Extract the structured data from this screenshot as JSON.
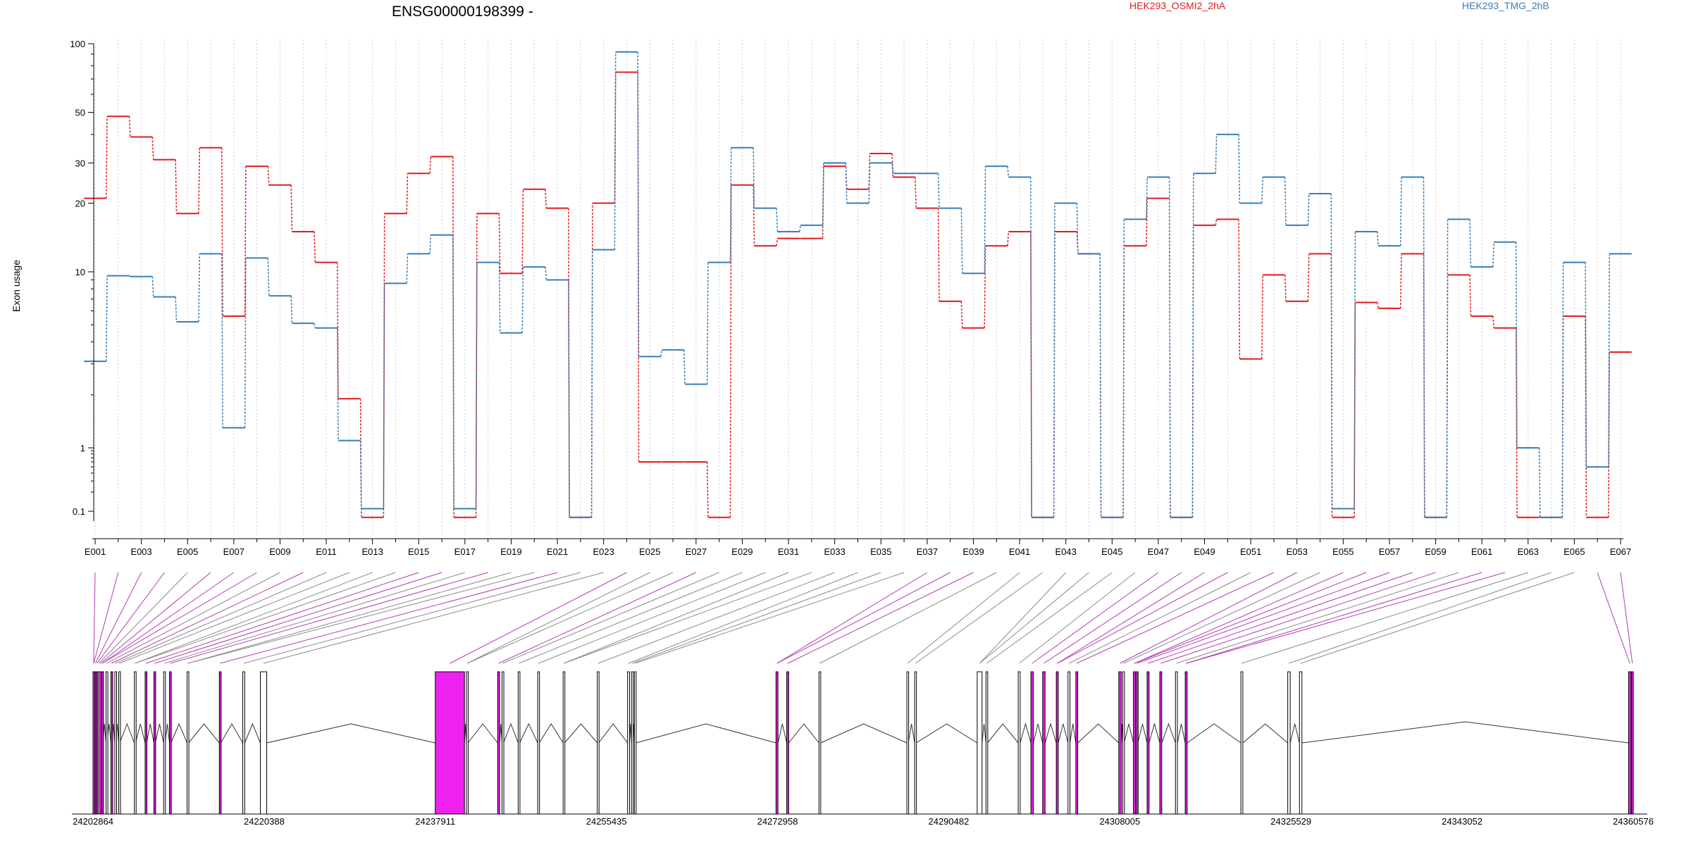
{
  "chart_data": {
    "type": "line",
    "title": "ENSG00000198399 -",
    "ylabel": "Exon usage",
    "yscale": "log",
    "ylim": [
      0.07,
      100
    ],
    "yticks": [
      0.1,
      1,
      10,
      20,
      30,
      50,
      100
    ],
    "ytick_labels": [
      "0.1",
      "1",
      "10",
      "20",
      "30",
      "50",
      "100"
    ],
    "categories": [
      "E001",
      "E002",
      "E003",
      "E004",
      "E005",
      "E006",
      "E007",
      "E008",
      "E009",
      "E010",
      "E011",
      "E012",
      "E013",
      "E014",
      "E015",
      "E016",
      "E017",
      "E018",
      "E019",
      "E020",
      "E021",
      "E022",
      "E023",
      "E024",
      "E025",
      "E026",
      "E027",
      "E028",
      "E029",
      "E030",
      "E031",
      "E032",
      "E033",
      "E034",
      "E035",
      "E036",
      "E037",
      "E038",
      "E039",
      "E040",
      "E041",
      "E042",
      "E043",
      "E044",
      "E045",
      "E046",
      "E047",
      "E048",
      "E049",
      "E050",
      "E051",
      "E052",
      "E053",
      "E054",
      "E055",
      "E056",
      "E057",
      "E058",
      "E059",
      "E060",
      "E061",
      "E062",
      "E063",
      "E064",
      "E065",
      "E066",
      "E067"
    ],
    "xtick_labels": [
      "E001",
      "E003",
      "E005",
      "E007",
      "E009",
      "E011",
      "E013",
      "E015",
      "E017",
      "E019",
      "E021",
      "E023",
      "E025",
      "E027",
      "E029",
      "E031",
      "E033",
      "E035",
      "E037",
      "E039",
      "E041",
      "E043",
      "E045",
      "E047",
      "E049",
      "E051",
      "E053",
      "E055",
      "E057",
      "E059",
      "E061",
      "E063",
      "E065",
      "E067"
    ],
    "series": [
      {
        "name": "HEK293_OSMI2_2hA",
        "color": "#e41a1c",
        "values": [
          21,
          48,
          39,
          31,
          18,
          35,
          5.6,
          29,
          24,
          15,
          11,
          1.9,
          0.08,
          18,
          27,
          32,
          0.08,
          18,
          9.8,
          23,
          19,
          0.08,
          20,
          75,
          0.6,
          0.6,
          0.6,
          0.08,
          24,
          13,
          14,
          14,
          29,
          23,
          33,
          26,
          19,
          6.8,
          4.8,
          13,
          15,
          0.08,
          15,
          12,
          0.08,
          13,
          21,
          0.08,
          16,
          17,
          3.2,
          9.6,
          6.8,
          12,
          0.08,
          6.7,
          6.2,
          12,
          0.08,
          9.6,
          5.6,
          4.8,
          0.08,
          0.08,
          5.6,
          0.08,
          3.5
        ]
      },
      {
        "name": "HEK293_TMG_2hB",
        "color": "#377eb8",
        "values": [
          3.1,
          9.5,
          9.4,
          7.2,
          5.2,
          12,
          1.3,
          11.5,
          7.3,
          5.1,
          4.8,
          1.1,
          0.11,
          8.6,
          12,
          14.5,
          0.11,
          11,
          4.5,
          10.5,
          9.0,
          0.08,
          12.5,
          92,
          3.3,
          3.6,
          2.3,
          11,
          35,
          19,
          15,
          16,
          30,
          20,
          30,
          27,
          27,
          19,
          9.8,
          29,
          26,
          0.08,
          20,
          12,
          0.08,
          17,
          26,
          0.08,
          27,
          40,
          20,
          26,
          16,
          22,
          0.11,
          15,
          13,
          26,
          0.08,
          17,
          10.5,
          13.5,
          1.0,
          0.08,
          11,
          0.5,
          12
        ]
      }
    ],
    "legend_placement": "top",
    "gene_model": {
      "coordinate_labels": [
        "24202864",
        "24220388",
        "24237911",
        "24255435",
        "24272958",
        "24290482",
        "24308005",
        "24325529",
        "24343052",
        "24360576"
      ],
      "highlight_color": "#ee22ee",
      "exons": [
        {
          "start": 24202864,
          "end": 24203000,
          "highlight": true
        },
        {
          "start": 24203060,
          "end": 24203160,
          "highlight": true
        },
        {
          "start": 24203200,
          "end": 24203340,
          "highlight": true
        },
        {
          "start": 24203400,
          "end": 24203520,
          "highlight": false
        },
        {
          "start": 24203560,
          "end": 24203700,
          "highlight": true
        },
        {
          "start": 24203760,
          "end": 24203880,
          "highlight": true
        },
        {
          "start": 24204200,
          "end": 24204300,
          "highlight": false
        },
        {
          "start": 24204700,
          "end": 24204820,
          "highlight": true
        },
        {
          "start": 24205100,
          "end": 24205200,
          "highlight": false
        },
        {
          "start": 24205500,
          "end": 24205600,
          "highlight": false
        },
        {
          "start": 24207100,
          "end": 24207220,
          "highlight": false
        },
        {
          "start": 24208200,
          "end": 24208350,
          "highlight": true
        },
        {
          "start": 24209100,
          "end": 24209250,
          "highlight": true
        },
        {
          "start": 24210100,
          "end": 24210250,
          "highlight": false
        },
        {
          "start": 24210700,
          "end": 24210850,
          "highlight": true
        },
        {
          "start": 24212500,
          "end": 24212650,
          "highlight": false
        },
        {
          "start": 24215800,
          "end": 24215950,
          "highlight": true
        },
        {
          "start": 24218200,
          "end": 24218400,
          "highlight": false
        },
        {
          "start": 24220000,
          "end": 24220650,
          "highlight": false
        },
        {
          "start": 24237911,
          "end": 24240900,
          "highlight": true
        },
        {
          "start": 24241100,
          "end": 24241250,
          "highlight": false
        },
        {
          "start": 24244300,
          "end": 24244500,
          "highlight": true
        },
        {
          "start": 24244750,
          "end": 24244900,
          "highlight": false
        },
        {
          "start": 24246400,
          "end": 24246550,
          "highlight": false
        },
        {
          "start": 24248400,
          "end": 24248550,
          "highlight": false
        },
        {
          "start": 24251000,
          "end": 24251150,
          "highlight": false
        },
        {
          "start": 24254500,
          "end": 24254650,
          "highlight": false
        },
        {
          "start": 24257600,
          "end": 24257800,
          "highlight": false
        },
        {
          "start": 24258000,
          "end": 24258150,
          "highlight": false
        },
        {
          "start": 24258300,
          "end": 24258450,
          "highlight": false
        },
        {
          "start": 24272800,
          "end": 24273000,
          "highlight": true
        },
        {
          "start": 24273900,
          "end": 24274100,
          "highlight": true
        },
        {
          "start": 24277200,
          "end": 24277350,
          "highlight": false
        },
        {
          "start": 24286200,
          "end": 24286350,
          "highlight": false
        },
        {
          "start": 24287000,
          "end": 24287150,
          "highlight": false
        },
        {
          "start": 24293400,
          "end": 24293900,
          "highlight": false
        },
        {
          "start": 24294300,
          "end": 24294450,
          "highlight": false
        },
        {
          "start": 24297600,
          "end": 24297800,
          "highlight": false
        },
        {
          "start": 24298900,
          "end": 24299150,
          "highlight": true
        },
        {
          "start": 24300100,
          "end": 24300350,
          "highlight": true
        },
        {
          "start": 24301500,
          "end": 24301700,
          "highlight": true
        },
        {
          "start": 24302700,
          "end": 24302900,
          "highlight": false
        },
        {
          "start": 24303500,
          "end": 24303700,
          "highlight": true
        },
        {
          "start": 24307900,
          "end": 24308150,
          "highlight": true
        },
        {
          "start": 24308300,
          "end": 24308450,
          "highlight": false
        },
        {
          "start": 24309400,
          "end": 24309600,
          "highlight": true
        },
        {
          "start": 24309700,
          "end": 24309850,
          "highlight": true
        },
        {
          "start": 24310800,
          "end": 24311000,
          "highlight": true
        },
        {
          "start": 24312100,
          "end": 24312300,
          "highlight": true
        },
        {
          "start": 24313700,
          "end": 24313900,
          "highlight": false
        },
        {
          "start": 24314700,
          "end": 24314900,
          "highlight": true
        },
        {
          "start": 24320400,
          "end": 24320600,
          "highlight": false
        },
        {
          "start": 24325200,
          "end": 24325450,
          "highlight": false
        },
        {
          "start": 24326400,
          "end": 24326650,
          "highlight": false
        },
        {
          "start": 24360100,
          "end": 24360350,
          "highlight": true
        },
        {
          "start": 24360400,
          "end": 24360576,
          "highlight": true
        }
      ]
    }
  }
}
